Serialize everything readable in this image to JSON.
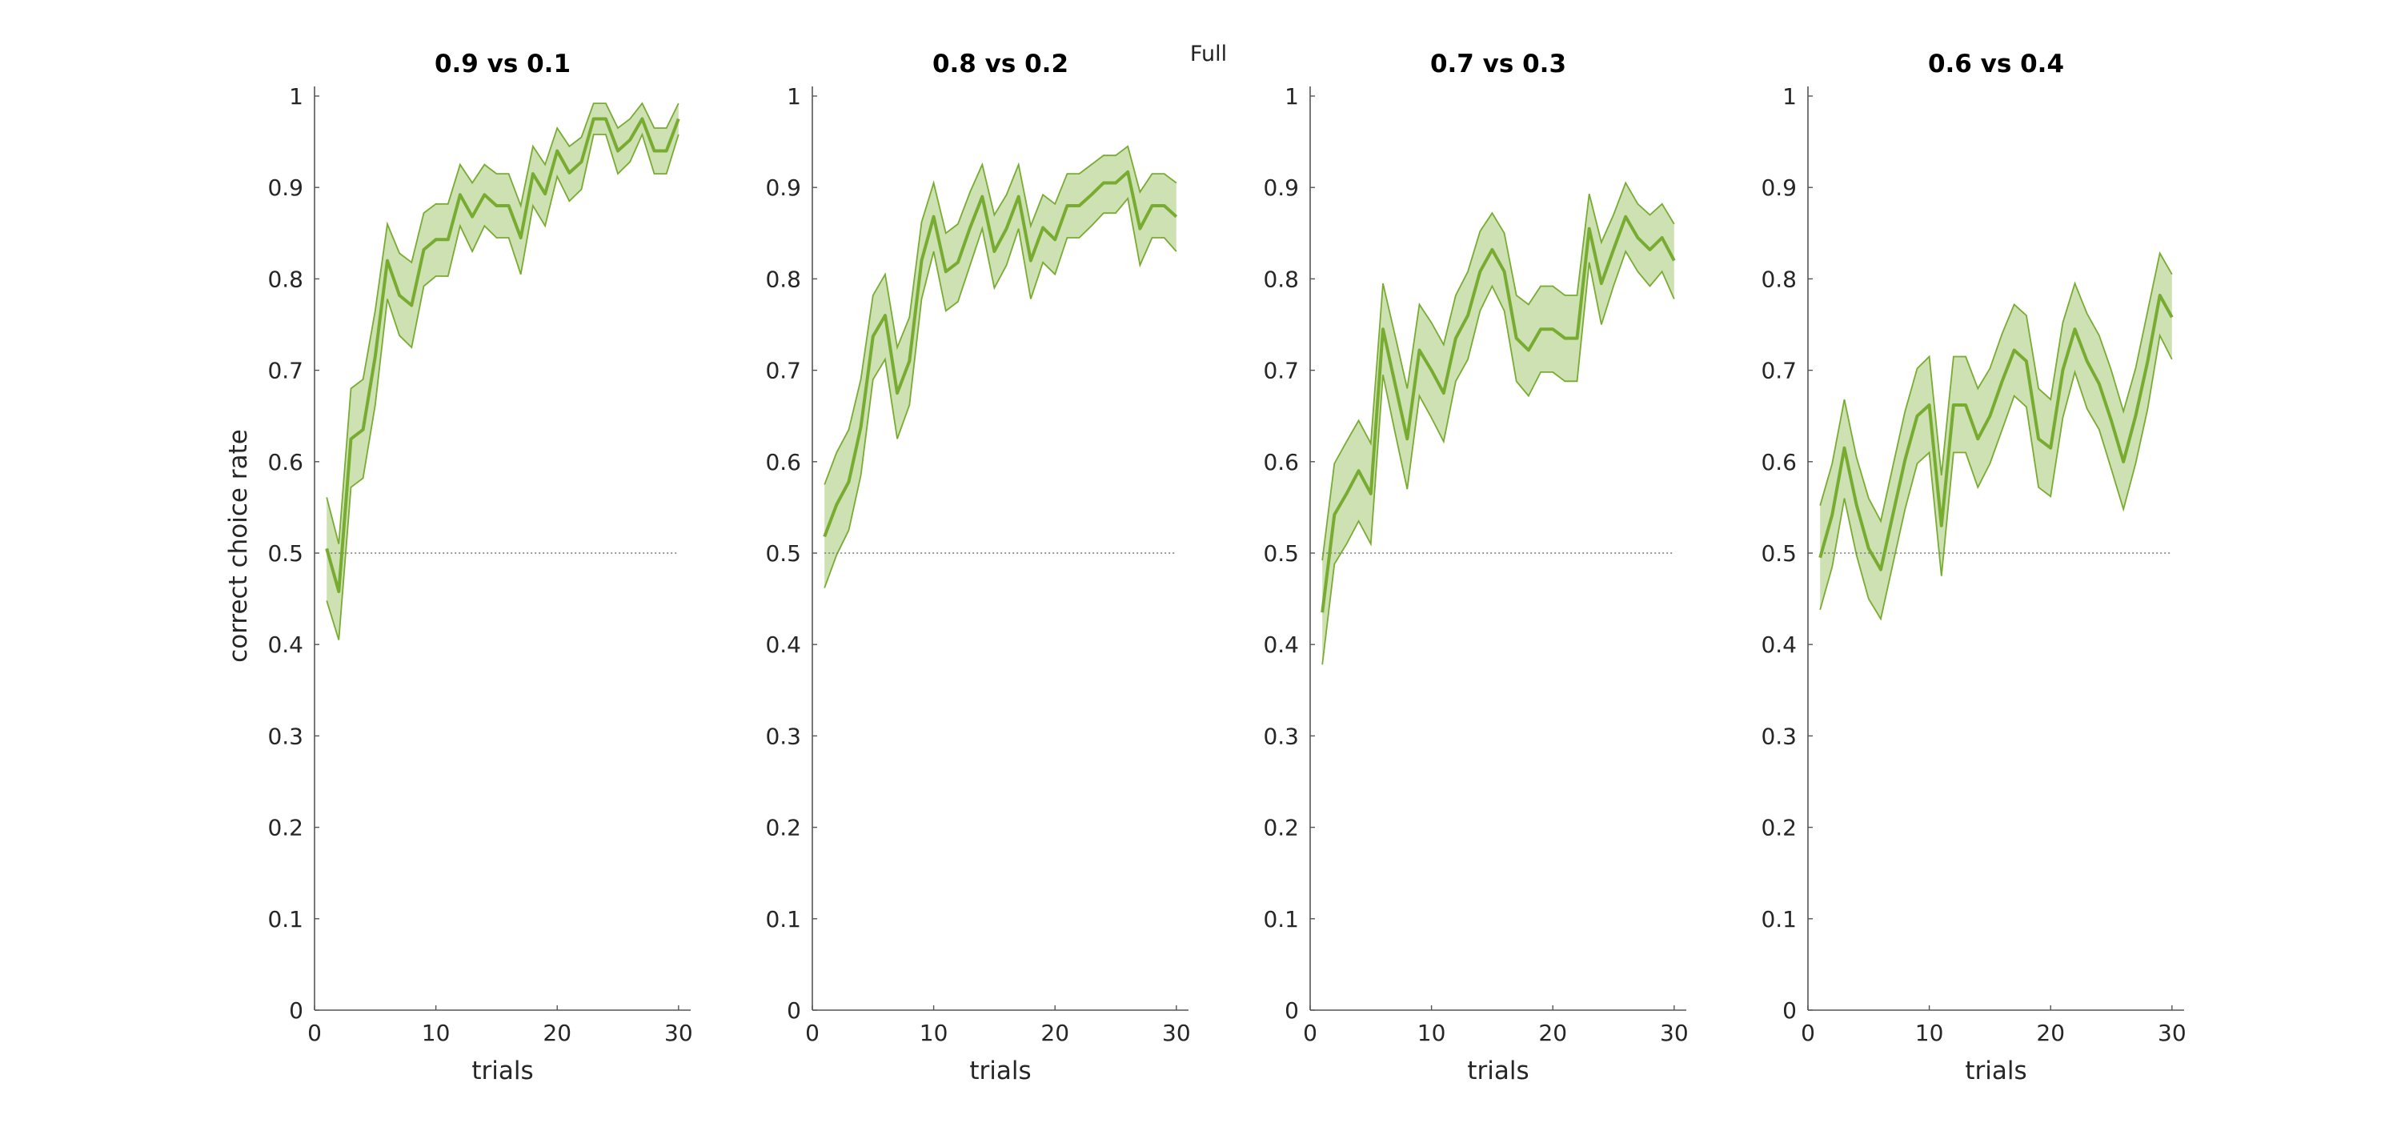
{
  "figure": {
    "suptitle": "Full"
  },
  "chart_data": [
    {
      "type": "line",
      "title": "0.9 vs 0.1",
      "xlabel": "trials",
      "ylabel": "correct choice rate",
      "xlim": [
        0,
        31
      ],
      "ylim": [
        0,
        1
      ],
      "xticks": [
        0,
        10,
        20,
        30
      ],
      "yticks": [
        0,
        0.1,
        0.2,
        0.3,
        0.4,
        0.5,
        0.6,
        0.7,
        0.8,
        0.9,
        1
      ],
      "ytick_labels": [
        "0",
        "0.1",
        "0.2",
        "0.3",
        "0.4",
        "0.5",
        "0.6",
        "0.7",
        "0.8",
        "0.9",
        "1"
      ],
      "chance_level": 0.5,
      "color": "#77ac30",
      "band_fill": "#cde1b2",
      "x": [
        1,
        2,
        3,
        4,
        5,
        6,
        7,
        8,
        9,
        10,
        11,
        12,
        13,
        14,
        15,
        16,
        17,
        18,
        19,
        20,
        21,
        22,
        23,
        24,
        25,
        26,
        27,
        28,
        29,
        30
      ],
      "mean": [
        0.505,
        0.458,
        0.625,
        0.635,
        0.715,
        0.82,
        0.782,
        0.771,
        0.832,
        0.843,
        0.843,
        0.892,
        0.868,
        0.892,
        0.88,
        0.88,
        0.845,
        0.915,
        0.893,
        0.94,
        0.916,
        0.928,
        0.975,
        0.975,
        0.94,
        0.952,
        0.975,
        0.94,
        0.94,
        0.975
      ],
      "upper": [
        0.561,
        0.51,
        0.68,
        0.69,
        0.765,
        0.86,
        0.828,
        0.818,
        0.872,
        0.882,
        0.882,
        0.925,
        0.905,
        0.925,
        0.915,
        0.915,
        0.88,
        0.945,
        0.925,
        0.965,
        0.945,
        0.955,
        0.992,
        0.992,
        0.965,
        0.975,
        0.992,
        0.965,
        0.965,
        0.992
      ],
      "lower": [
        0.448,
        0.405,
        0.572,
        0.582,
        0.662,
        0.778,
        0.738,
        0.725,
        0.792,
        0.803,
        0.803,
        0.858,
        0.83,
        0.858,
        0.845,
        0.845,
        0.805,
        0.88,
        0.858,
        0.912,
        0.885,
        0.898,
        0.958,
        0.958,
        0.915,
        0.928,
        0.958,
        0.915,
        0.915,
        0.958
      ]
    },
    {
      "type": "line",
      "title": "0.8 vs 0.2",
      "xlabel": "trials",
      "ylabel": "",
      "xlim": [
        0,
        31
      ],
      "ylim": [
        0,
        1
      ],
      "xticks": [
        0,
        10,
        20,
        30
      ],
      "yticks": [
        0,
        0.1,
        0.2,
        0.3,
        0.4,
        0.5,
        0.6,
        0.7,
        0.8,
        0.9,
        1
      ],
      "ytick_labels": [
        "0",
        "0.1",
        "0.2",
        "0.3",
        "0.4",
        "0.5",
        "0.6",
        "0.7",
        "0.8",
        "0.9",
        "1"
      ],
      "chance_level": 0.5,
      "color": "#77ac30",
      "band_fill": "#cde1b2",
      "x": [
        1,
        2,
        3,
        4,
        5,
        6,
        7,
        8,
        9,
        10,
        11,
        12,
        13,
        14,
        15,
        16,
        17,
        18,
        19,
        20,
        21,
        22,
        23,
        24,
        25,
        26,
        27,
        28,
        29,
        30
      ],
      "mean": [
        0.518,
        0.553,
        0.578,
        0.638,
        0.737,
        0.76,
        0.675,
        0.71,
        0.82,
        0.868,
        0.808,
        0.818,
        0.856,
        0.89,
        0.83,
        0.855,
        0.89,
        0.82,
        0.856,
        0.843,
        0.88,
        0.88,
        0.892,
        0.905,
        0.905,
        0.917,
        0.855,
        0.88,
        0.88,
        0.868
      ],
      "upper": [
        0.575,
        0.61,
        0.635,
        0.69,
        0.782,
        0.805,
        0.725,
        0.758,
        0.862,
        0.905,
        0.85,
        0.86,
        0.895,
        0.925,
        0.87,
        0.892,
        0.925,
        0.858,
        0.892,
        0.882,
        0.915,
        0.915,
        0.925,
        0.935,
        0.935,
        0.945,
        0.895,
        0.915,
        0.915,
        0.905
      ],
      "lower": [
        0.462,
        0.498,
        0.525,
        0.585,
        0.69,
        0.712,
        0.625,
        0.662,
        0.778,
        0.83,
        0.765,
        0.775,
        0.815,
        0.855,
        0.79,
        0.815,
        0.855,
        0.778,
        0.818,
        0.805,
        0.845,
        0.845,
        0.858,
        0.872,
        0.872,
        0.888,
        0.815,
        0.845,
        0.845,
        0.83
      ]
    },
    {
      "type": "line",
      "title": "0.7 vs 0.3",
      "xlabel": "trials",
      "ylabel": "",
      "xlim": [
        0,
        31
      ],
      "ylim": [
        0,
        1
      ],
      "xticks": [
        0,
        10,
        20,
        30
      ],
      "yticks": [
        0,
        0.1,
        0.2,
        0.3,
        0.4,
        0.5,
        0.6,
        0.7,
        0.8,
        0.9,
        1
      ],
      "ytick_labels": [
        "0",
        "0.1",
        "0.2",
        "0.3",
        "0.4",
        "0.5",
        "0.6",
        "0.7",
        "0.8",
        "0.9",
        "1"
      ],
      "chance_level": 0.5,
      "color": "#77ac30",
      "band_fill": "#cde1b2",
      "x": [
        1,
        2,
        3,
        4,
        5,
        6,
        7,
        8,
        9,
        10,
        11,
        12,
        13,
        14,
        15,
        16,
        17,
        18,
        19,
        20,
        21,
        22,
        23,
        24,
        25,
        26,
        27,
        28,
        29,
        30
      ],
      "mean": [
        0.435,
        0.542,
        0.565,
        0.59,
        0.565,
        0.745,
        0.685,
        0.625,
        0.722,
        0.7,
        0.675,
        0.735,
        0.76,
        0.808,
        0.832,
        0.808,
        0.735,
        0.722,
        0.745,
        0.745,
        0.735,
        0.735,
        0.855,
        0.795,
        0.832,
        0.868,
        0.845,
        0.832,
        0.845,
        0.82
      ],
      "upper": [
        0.492,
        0.598,
        0.622,
        0.645,
        0.62,
        0.795,
        0.738,
        0.68,
        0.772,
        0.752,
        0.728,
        0.782,
        0.808,
        0.852,
        0.872,
        0.85,
        0.782,
        0.772,
        0.792,
        0.792,
        0.782,
        0.782,
        0.893,
        0.84,
        0.87,
        0.905,
        0.882,
        0.87,
        0.882,
        0.86
      ],
      "lower": [
        0.378,
        0.488,
        0.51,
        0.535,
        0.51,
        0.695,
        0.632,
        0.57,
        0.672,
        0.648,
        0.622,
        0.688,
        0.712,
        0.765,
        0.792,
        0.765,
        0.688,
        0.672,
        0.698,
        0.698,
        0.688,
        0.688,
        0.818,
        0.75,
        0.792,
        0.83,
        0.808,
        0.792,
        0.808,
        0.778
      ]
    },
    {
      "type": "line",
      "title": "0.6 vs 0.4",
      "xlabel": "trials",
      "ylabel": "",
      "xlim": [
        0,
        31
      ],
      "ylim": [
        0,
        1
      ],
      "xticks": [
        0,
        10,
        20,
        30
      ],
      "yticks": [
        0,
        0.1,
        0.2,
        0.3,
        0.4,
        0.5,
        0.6,
        0.7,
        0.8,
        0.9,
        1
      ],
      "ytick_labels": [
        "0",
        "0.1",
        "0.2",
        "0.3",
        "0.4",
        "0.5",
        "0.6",
        "0.7",
        "0.8",
        "0.9",
        "1"
      ],
      "chance_level": 0.5,
      "color": "#77ac30",
      "band_fill": "#cde1b2",
      "x": [
        1,
        2,
        3,
        4,
        5,
        6,
        7,
        8,
        9,
        10,
        11,
        12,
        13,
        14,
        15,
        16,
        17,
        18,
        19,
        20,
        21,
        22,
        23,
        24,
        25,
        26,
        27,
        28,
        29,
        30
      ],
      "mean": [
        0.495,
        0.542,
        0.615,
        0.553,
        0.505,
        0.482,
        0.542,
        0.602,
        0.65,
        0.662,
        0.53,
        0.662,
        0.662,
        0.625,
        0.65,
        0.688,
        0.722,
        0.71,
        0.625,
        0.615,
        0.7,
        0.745,
        0.71,
        0.685,
        0.645,
        0.6,
        0.65,
        0.71,
        0.782,
        0.758
      ],
      "upper": [
        0.552,
        0.598,
        0.668,
        0.605,
        0.56,
        0.535,
        0.595,
        0.655,
        0.702,
        0.715,
        0.585,
        0.715,
        0.715,
        0.68,
        0.702,
        0.74,
        0.772,
        0.76,
        0.68,
        0.668,
        0.752,
        0.795,
        0.762,
        0.738,
        0.7,
        0.655,
        0.702,
        0.765,
        0.828,
        0.805
      ],
      "lower": [
        0.438,
        0.485,
        0.56,
        0.498,
        0.45,
        0.428,
        0.488,
        0.548,
        0.598,
        0.61,
        0.475,
        0.61,
        0.61,
        0.572,
        0.598,
        0.635,
        0.672,
        0.66,
        0.572,
        0.562,
        0.648,
        0.698,
        0.658,
        0.635,
        0.592,
        0.548,
        0.598,
        0.658,
        0.738,
        0.712
      ]
    }
  ]
}
